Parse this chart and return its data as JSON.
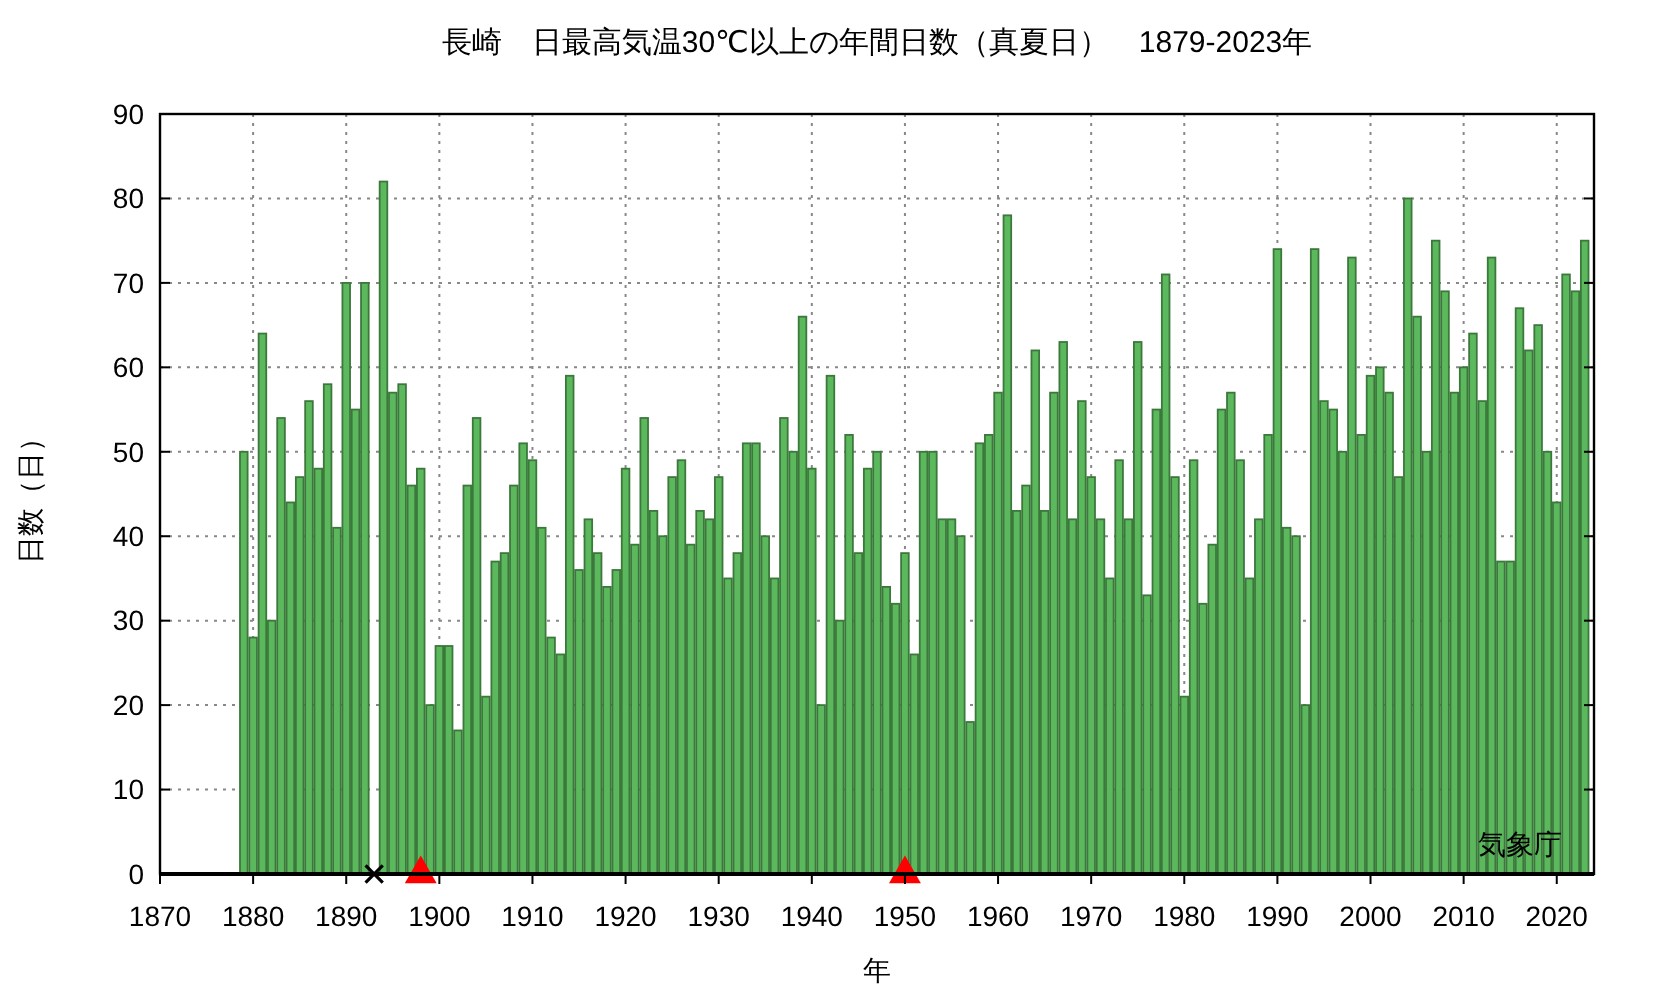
{
  "chart_data": {
    "type": "bar",
    "title": "長崎　日最高気温30℃以上の年間日数（真夏日）　1879-2023年",
    "xlabel": "年",
    "ylabel": "日数（日）",
    "xlim": [
      1870,
      2024
    ],
    "xticks": [
      1870,
      1880,
      1890,
      1900,
      1910,
      1920,
      1930,
      1940,
      1950,
      1960,
      1970,
      1980,
      1990,
      2000,
      2010,
      2020
    ],
    "ylim": [
      0,
      90
    ],
    "yticks": [
      0,
      10,
      20,
      30,
      40,
      50,
      60,
      70,
      80,
      90
    ],
    "grid": true,
    "annotations": [
      "気象庁"
    ],
    "series": [
      {
        "color": "#5cb85c",
        "x": [
          1879,
          1880,
          1881,
          1882,
          1883,
          1884,
          1885,
          1886,
          1887,
          1888,
          1889,
          1890,
          1891,
          1892,
          1893,
          1894,
          1895,
          1896,
          1897,
          1898,
          1899,
          1900,
          1901,
          1902,
          1903,
          1904,
          1905,
          1906,
          1907,
          1908,
          1909,
          1910,
          1911,
          1912,
          1913,
          1914,
          1915,
          1916,
          1917,
          1918,
          1919,
          1920,
          1921,
          1922,
          1923,
          1924,
          1925,
          1926,
          1927,
          1928,
          1929,
          1930,
          1931,
          1932,
          1933,
          1934,
          1935,
          1936,
          1937,
          1938,
          1939,
          1940,
          1941,
          1942,
          1943,
          1944,
          1945,
          1946,
          1947,
          1948,
          1949,
          1950,
          1951,
          1952,
          1953,
          1954,
          1955,
          1956,
          1957,
          1958,
          1959,
          1960,
          1961,
          1962,
          1963,
          1964,
          1965,
          1966,
          1967,
          1968,
          1969,
          1970,
          1971,
          1972,
          1973,
          1974,
          1975,
          1976,
          1977,
          1978,
          1979,
          1980,
          1981,
          1982,
          1983,
          1984,
          1985,
          1986,
          1987,
          1988,
          1989,
          1990,
          1991,
          1992,
          1993,
          1994,
          1995,
          1996,
          1997,
          1998,
          1999,
          2000,
          2001,
          2002,
          2003,
          2004,
          2005,
          2006,
          2007,
          2008,
          2009,
          2010,
          2011,
          2012,
          2013,
          2014,
          2015,
          2016,
          2017,
          2018,
          2019,
          2020,
          2021,
          2022,
          2023
        ],
        "values": [
          50,
          28,
          64,
          30,
          54,
          44,
          47,
          56,
          48,
          58,
          41,
          70,
          55,
          70,
          null,
          82,
          57,
          58,
          46,
          48,
          20,
          27,
          27,
          17,
          46,
          54,
          21,
          37,
          38,
          46,
          51,
          49,
          41,
          28,
          26,
          59,
          36,
          42,
          38,
          34,
          36,
          48,
          39,
          54,
          43,
          40,
          47,
          49,
          39,
          43,
          42,
          47,
          35,
          38,
          51,
          51,
          40,
          35,
          54,
          50,
          66,
          48,
          20,
          59,
          30,
          52,
          38,
          48,
          50,
          34,
          32,
          38,
          26,
          50,
          50,
          42,
          42,
          40,
          18,
          51,
          52,
          57,
          78,
          43,
          46,
          62,
          43,
          57,
          63,
          42,
          56,
          47,
          42,
          35,
          49,
          42,
          63,
          33,
          55,
          71,
          47,
          21,
          49,
          32,
          39,
          55,
          57,
          49,
          35,
          42,
          52,
          74,
          41,
          40,
          20,
          74,
          56,
          55,
          50,
          73,
          52,
          59,
          60,
          57,
          47,
          80,
          66,
          50,
          75,
          69,
          57,
          60,
          64,
          56,
          73,
          37,
          37,
          67,
          62,
          65,
          50,
          44,
          71,
          69,
          75
        ]
      },
      {
        "type": "scatter",
        "marker": "cross",
        "color": "#000000",
        "x": [
          1893
        ],
        "values": [
          0
        ]
      },
      {
        "type": "scatter",
        "marker": "triangle",
        "color": "#ff0000",
        "x": [
          1898,
          1950
        ],
        "values": [
          0,
          0
        ]
      }
    ]
  }
}
